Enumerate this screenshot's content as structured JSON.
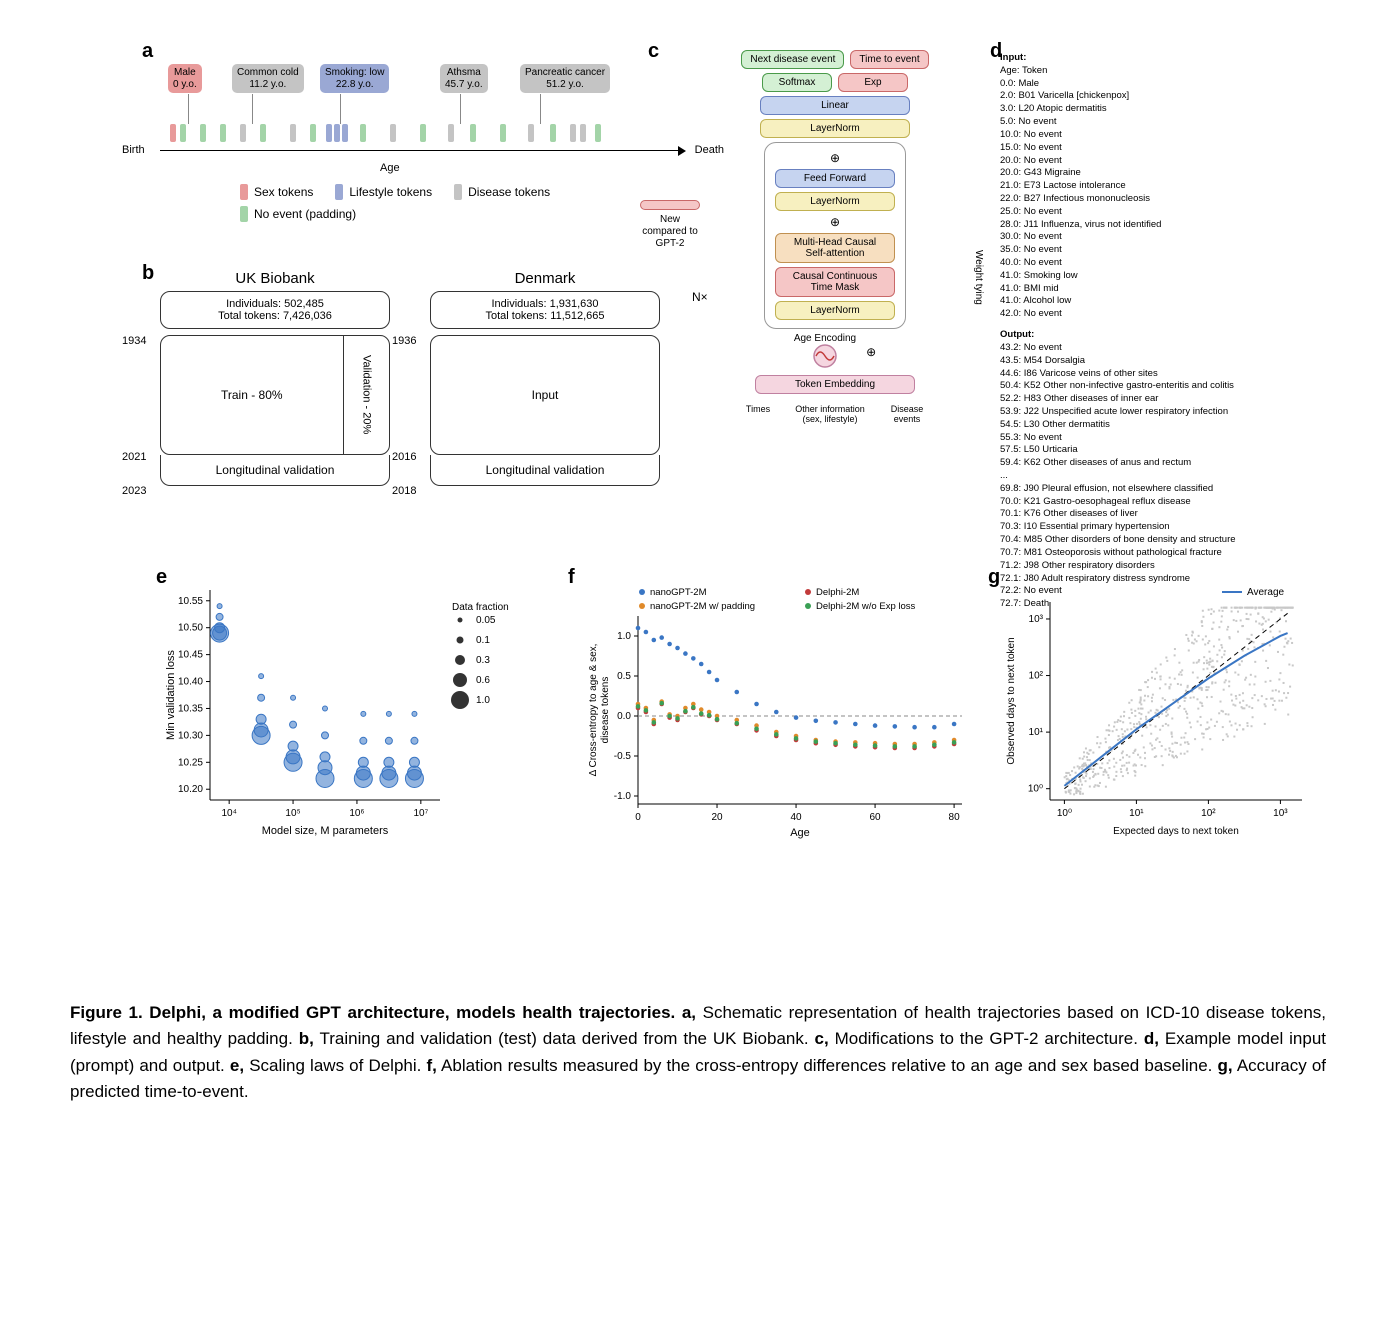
{
  "figure_label": "Figure 1.",
  "caption_bold": "Delphi, a modified GPT architecture, models health trajectories.",
  "caption_parts": {
    "a": "Schematic representation of health trajectories based on ICD-10 disease tokens, lifestyle and healthy padding.",
    "b": "Training and validation (test) data derived from the UK Biobank.",
    "c": "Modifications to the GPT-2 architecture.",
    "d": "Example model input (prompt) and output.",
    "e": "Scaling laws of Delphi.",
    "f": "Ablation results measured by the cross-entropy differences relative to an age and sex based baseline.",
    "g": "Accuracy of predicted time-to-event."
  },
  "panel_a": {
    "birth_label": "Birth",
    "death_label": "Death",
    "axis_label": "Age",
    "tags": [
      {
        "top": "Male",
        "bottom": "0 y.o.",
        "cls": "sex-col",
        "x": 8
      },
      {
        "top": "Common cold",
        "bottom": "11.2 y.o.",
        "cls": "dis-col",
        "x": 72
      },
      {
        "top": "Smoking: low",
        "bottom": "22.8 y.o.",
        "cls": "life-col",
        "x": 160
      },
      {
        "top": "Athsma",
        "bottom": "45.7 y.o.",
        "cls": "dis-col",
        "x": 280
      },
      {
        "top": "Pancreatic cancer",
        "bottom": "51.2 y.o.",
        "cls": "dis-col",
        "x": 360
      }
    ],
    "ticks": [
      {
        "x": 10,
        "cls": "sex-col"
      },
      {
        "x": 20,
        "cls": "pad-col"
      },
      {
        "x": 40,
        "cls": "pad-col"
      },
      {
        "x": 60,
        "cls": "pad-col"
      },
      {
        "x": 80,
        "cls": "dis-col"
      },
      {
        "x": 100,
        "cls": "pad-col"
      },
      {
        "x": 130,
        "cls": "dis-col"
      },
      {
        "x": 150,
        "cls": "pad-col"
      },
      {
        "x": 166,
        "cls": "life-col"
      },
      {
        "x": 174,
        "cls": "life-col"
      },
      {
        "x": 182,
        "cls": "life-col"
      },
      {
        "x": 200,
        "cls": "pad-col"
      },
      {
        "x": 230,
        "cls": "dis-col"
      },
      {
        "x": 260,
        "cls": "pad-col"
      },
      {
        "x": 288,
        "cls": "dis-col"
      },
      {
        "x": 310,
        "cls": "pad-col"
      },
      {
        "x": 340,
        "cls": "pad-col"
      },
      {
        "x": 368,
        "cls": "dis-col"
      },
      {
        "x": 390,
        "cls": "pad-col"
      },
      {
        "x": 410,
        "cls": "dis-col"
      },
      {
        "x": 420,
        "cls": "dis-col"
      },
      {
        "x": 435,
        "cls": "pad-col"
      }
    ],
    "legend": [
      {
        "label": "Sex tokens",
        "cls": "sex-col"
      },
      {
        "label": "Lifestyle tokens",
        "cls": "life-col"
      },
      {
        "label": "Disease tokens",
        "cls": "dis-col"
      },
      {
        "label": "No event (padding)",
        "cls": "pad-col"
      }
    ]
  },
  "panel_b": {
    "cols": [
      {
        "title": "UK Biobank",
        "individuals": "Individuals: 502,485",
        "tokens": "Total tokens: 7,426,036",
        "train": "Train - 80%",
        "val": "Validation - 20%",
        "long": "Longitudinal validation",
        "y_top": "1934",
        "y_mid": "2021",
        "y_bot": "2023",
        "is_split": true
      },
      {
        "title": "Denmark",
        "individuals": "Individuals: 1,931,630",
        "tokens": "Total tokens: 11,512,665",
        "train": "Input",
        "val": "",
        "long": "Longitudinal validation",
        "y_top": "1936",
        "y_mid": "2016",
        "y_bot": "2018",
        "is_split": false
      }
    ]
  },
  "panel_c": {
    "new_label": "New compared to GPT-2",
    "nx": "N×",
    "weight_tying": "Weight tying",
    "age_encoding": "Age Encoding",
    "bottom_labels": [
      "Times",
      "Other information (sex, lifestyle)",
      "Disease events"
    ],
    "blocks": {
      "next_disease": "Next disease event",
      "time_to_event": "Time to event",
      "softmax": "Softmax",
      "exp": "Exp",
      "linear": "Linear",
      "layernorm": "LayerNorm",
      "feedforward": "Feed Forward",
      "attention": "Multi-Head Causal Self-attention",
      "timemask": "Causal Continuous Time Mask",
      "token_emb": "Token Embedding"
    }
  },
  "panel_d": {
    "input_label": "Input:",
    "output_label": "Output:",
    "input_lines": [
      "Age: Token",
      "0.0:  Male",
      "2.0:  B01 Varicella [chickenpox]",
      "3.0:  L20 Atopic dermatitis",
      "5.0:  No event",
      "10.0: No event",
      "15.0: No event",
      "20.0: No event",
      "20.0: G43 Migraine",
      "21.0: E73 Lactose intolerance",
      "22.0: B27 Infectious mononucleosis",
      "25.0: No event",
      "28.0: J11 Influenza, virus not identified",
      "30.0: No event",
      "35.0: No event",
      "40.0: No event",
      "41.0: Smoking low",
      "41.0: BMI mid",
      "41.0: Alcohol low",
      "42.0: No event"
    ],
    "output_lines": [
      "43.2: No event",
      "43.5: M54 Dorsalgia",
      "44.6: I86 Varicose veins of other sites",
      "50.4: K52 Other non-infective gastro-enteritis and colitis",
      "52.2: H83 Other diseases of inner ear",
      "53.9: J22 Unspecified acute lower respiratory infection",
      "54.5: L30 Other dermatitis",
      "55.3: No event",
      "57.5: L50 Urticaria",
      "59.4: K62 Other diseases of anus and rectum",
      "...",
      "69.8: J90 Pleural effusion, not elsewhere classified",
      "70.0: K21 Gastro-oesophageal reflux disease",
      "70.1: K76 Other diseases of liver",
      "70.3: I10 Essential primary hypertension",
      "70.4: M85 Other disorders of bone density and structure",
      "70.7: M81 Osteoporosis without pathological fracture",
      "71.2: J98 Other respiratory disorders",
      "72.1: J80 Adult respiratory distress syndrome",
      "72.2: No event",
      "72.7: Death"
    ]
  },
  "panel_e": {
    "ylabel": "Min validation loss",
    "xlabel": "Model size, M parameters",
    "legend_title": "Data fraction",
    "legend_sizes": [
      {
        "label": "0.05",
        "r": 2.5
      },
      {
        "label": "0.1",
        "r": 3.5
      },
      {
        "label": "0.3",
        "r": 5
      },
      {
        "label": "0.6",
        "r": 7
      },
      {
        "label": "1.0",
        "r": 9
      }
    ],
    "color": "#3a76c4",
    "x_ticks": [
      "10⁴",
      "10⁵",
      "10⁶",
      "10⁷"
    ],
    "y_ticks": [
      10.2,
      10.25,
      10.3,
      10.35,
      10.4,
      10.45,
      10.5,
      10.55
    ],
    "x_log_min": 3.7,
    "x_log_max": 7.3,
    "y_min": 10.18,
    "y_max": 10.57,
    "points": [
      {
        "x": 3.85,
        "y": 10.54,
        "r": 2.5
      },
      {
        "x": 3.85,
        "y": 10.52,
        "r": 3.5
      },
      {
        "x": 3.85,
        "y": 10.5,
        "r": 5
      },
      {
        "x": 3.85,
        "y": 10.49,
        "r": 7
      },
      {
        "x": 3.85,
        "y": 10.49,
        "r": 9
      },
      {
        "x": 4.5,
        "y": 10.41,
        "r": 2.5
      },
      {
        "x": 4.5,
        "y": 10.37,
        "r": 3.5
      },
      {
        "x": 4.5,
        "y": 10.33,
        "r": 5
      },
      {
        "x": 4.5,
        "y": 10.31,
        "r": 7
      },
      {
        "x": 4.5,
        "y": 10.3,
        "r": 9
      },
      {
        "x": 5.0,
        "y": 10.37,
        "r": 2.5
      },
      {
        "x": 5.0,
        "y": 10.32,
        "r": 3.5
      },
      {
        "x": 5.0,
        "y": 10.28,
        "r": 5
      },
      {
        "x": 5.0,
        "y": 10.26,
        "r": 7
      },
      {
        "x": 5.0,
        "y": 10.25,
        "r": 9
      },
      {
        "x": 5.5,
        "y": 10.35,
        "r": 2.5
      },
      {
        "x": 5.5,
        "y": 10.3,
        "r": 3.5
      },
      {
        "x": 5.5,
        "y": 10.26,
        "r": 5
      },
      {
        "x": 5.5,
        "y": 10.24,
        "r": 7
      },
      {
        "x": 5.5,
        "y": 10.22,
        "r": 9
      },
      {
        "x": 6.1,
        "y": 10.34,
        "r": 2.5
      },
      {
        "x": 6.1,
        "y": 10.29,
        "r": 3.5
      },
      {
        "x": 6.1,
        "y": 10.25,
        "r": 5
      },
      {
        "x": 6.1,
        "y": 10.23,
        "r": 7
      },
      {
        "x": 6.1,
        "y": 10.22,
        "r": 9
      },
      {
        "x": 6.5,
        "y": 10.34,
        "r": 2.5
      },
      {
        "x": 6.5,
        "y": 10.29,
        "r": 3.5
      },
      {
        "x": 6.5,
        "y": 10.25,
        "r": 5
      },
      {
        "x": 6.5,
        "y": 10.23,
        "r": 7
      },
      {
        "x": 6.5,
        "y": 10.22,
        "r": 9
      },
      {
        "x": 6.9,
        "y": 10.34,
        "r": 2.5
      },
      {
        "x": 6.9,
        "y": 10.29,
        "r": 3.5
      },
      {
        "x": 6.9,
        "y": 10.25,
        "r": 5
      },
      {
        "x": 6.9,
        "y": 10.23,
        "r": 7
      },
      {
        "x": 6.9,
        "y": 10.22,
        "r": 9
      }
    ]
  },
  "panel_f": {
    "ylabel": "Δ Cross-entropy to age & sex,\ndisease tokens",
    "xlabel": "Age",
    "legend": [
      {
        "label": "nanoGPT-2M",
        "color": "#3a76c4"
      },
      {
        "label": "Delphi-2M",
        "color": "#c23a3a"
      },
      {
        "label": "nanoGPT-2M w/ padding",
        "color": "#e08a2a"
      },
      {
        "label": "Delphi-2M w/o Exp loss",
        "color": "#3aa055"
      }
    ],
    "x_ticks": [
      0,
      20,
      40,
      60,
      80
    ],
    "y_ticks": [
      -1.0,
      -0.5,
      0.0,
      0.5,
      1.0
    ],
    "x_min": 0,
    "x_max": 82,
    "y_min": -1.1,
    "y_max": 1.25,
    "series": {
      "nano": {
        "color": "#3a76c4",
        "pts": [
          [
            0,
            1.1
          ],
          [
            2,
            1.05
          ],
          [
            4,
            0.95
          ],
          [
            6,
            0.98
          ],
          [
            8,
            0.9
          ],
          [
            10,
            0.85
          ],
          [
            12,
            0.78
          ],
          [
            14,
            0.72
          ],
          [
            16,
            0.65
          ],
          [
            18,
            0.55
          ],
          [
            20,
            0.45
          ],
          [
            25,
            0.3
          ],
          [
            30,
            0.15
          ],
          [
            35,
            0.05
          ],
          [
            40,
            -0.02
          ],
          [
            45,
            -0.06
          ],
          [
            50,
            -0.08
          ],
          [
            55,
            -0.1
          ],
          [
            60,
            -0.12
          ],
          [
            65,
            -0.13
          ],
          [
            70,
            -0.14
          ],
          [
            75,
            -0.14
          ],
          [
            80,
            -0.1
          ]
        ]
      },
      "nano_pad": {
        "color": "#e08a2a",
        "pts": [
          [
            0,
            0.15
          ],
          [
            2,
            0.1
          ],
          [
            4,
            -0.05
          ],
          [
            6,
            0.18
          ],
          [
            8,
            0.02
          ],
          [
            10,
            0.0
          ],
          [
            12,
            0.1
          ],
          [
            14,
            0.15
          ],
          [
            16,
            0.08
          ],
          [
            18,
            0.05
          ],
          [
            20,
            0.0
          ],
          [
            25,
            -0.05
          ],
          [
            30,
            -0.12
          ],
          [
            35,
            -0.2
          ],
          [
            40,
            -0.25
          ],
          [
            45,
            -0.3
          ],
          [
            50,
            -0.32
          ],
          [
            55,
            -0.33
          ],
          [
            60,
            -0.34
          ],
          [
            65,
            -0.35
          ],
          [
            70,
            -0.35
          ],
          [
            75,
            -0.33
          ],
          [
            80,
            -0.3
          ]
        ]
      },
      "delphi": {
        "color": "#c23a3a",
        "pts": [
          [
            0,
            0.1
          ],
          [
            2,
            0.05
          ],
          [
            4,
            -0.1
          ],
          [
            6,
            0.15
          ],
          [
            8,
            -0.02
          ],
          [
            10,
            -0.05
          ],
          [
            12,
            0.05
          ],
          [
            14,
            0.1
          ],
          [
            16,
            0.02
          ],
          [
            18,
            0.0
          ],
          [
            20,
            -0.05
          ],
          [
            25,
            -0.1
          ],
          [
            30,
            -0.18
          ],
          [
            35,
            -0.25
          ],
          [
            40,
            -0.3
          ],
          [
            45,
            -0.34
          ],
          [
            50,
            -0.36
          ],
          [
            55,
            -0.38
          ],
          [
            60,
            -0.39
          ],
          [
            65,
            -0.4
          ],
          [
            70,
            -0.4
          ],
          [
            75,
            -0.38
          ],
          [
            80,
            -0.35
          ]
        ]
      },
      "delphi_noexp": {
        "color": "#3aa055",
        "pts": [
          [
            0,
            0.12
          ],
          [
            2,
            0.07
          ],
          [
            4,
            -0.08
          ],
          [
            6,
            0.16
          ],
          [
            8,
            0.0
          ],
          [
            10,
            -0.03
          ],
          [
            12,
            0.06
          ],
          [
            14,
            0.11
          ],
          [
            16,
            0.03
          ],
          [
            18,
            0.01
          ],
          [
            20,
            -0.04
          ],
          [
            25,
            -0.09
          ],
          [
            30,
            -0.16
          ],
          [
            35,
            -0.23
          ],
          [
            40,
            -0.28
          ],
          [
            45,
            -0.32
          ],
          [
            50,
            -0.34
          ],
          [
            55,
            -0.36
          ],
          [
            60,
            -0.37
          ],
          [
            65,
            -0.38
          ],
          [
            70,
            -0.38
          ],
          [
            75,
            -0.36
          ],
          [
            80,
            -0.33
          ]
        ]
      }
    }
  },
  "panel_g": {
    "ylabel": "Observed days to next token",
    "xlabel": "Expected days to next token",
    "legend": "Average",
    "avg_color": "#3a76c4",
    "scatter_color": "#c8c8c8",
    "ticks": [
      "10⁰",
      "10¹",
      "10²",
      "10³"
    ],
    "log_min": -0.2,
    "log_max": 3.3
  }
}
